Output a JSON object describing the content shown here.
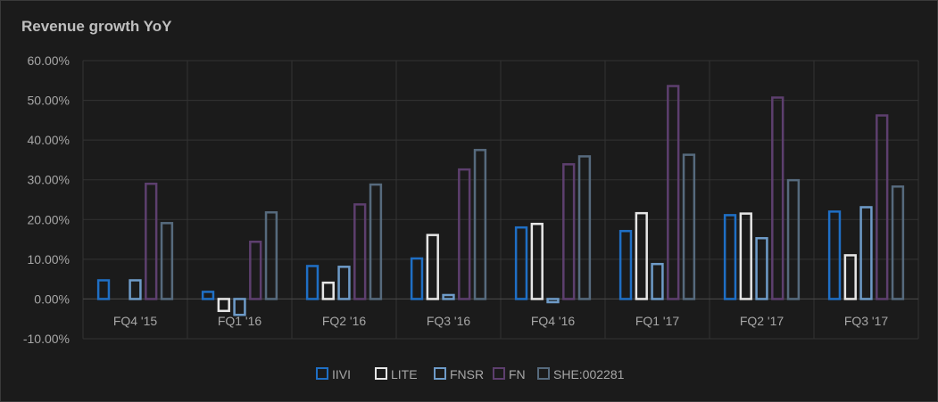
{
  "chart_data": {
    "type": "bar",
    "title": "Revenue growth YoY",
    "categories": [
      "FQ4 '15",
      "FQ1 '16",
      "FQ2 '16",
      "FQ3 '16",
      "FQ4 '16",
      "FQ1 '17",
      "FQ2 '17",
      "FQ3 '17"
    ],
    "series": [
      {
        "name": "IIVI",
        "color": "#1f6fc5",
        "values": [
          4.7,
          1.8,
          8.3,
          10.2,
          18.0,
          17.1,
          21.1,
          22.0
        ]
      },
      {
        "name": "LITE",
        "color": "#e6e6e6",
        "values": [
          null,
          -3.0,
          4.1,
          16.1,
          18.9,
          21.6,
          21.5,
          11.0
        ]
      },
      {
        "name": "FNSR",
        "color": "#6e9bc8",
        "values": [
          4.7,
          -4.0,
          8.1,
          1.0,
          -0.8,
          8.8,
          15.3,
          23.1
        ]
      },
      {
        "name": "FN",
        "color": "#5d3f6e",
        "values": [
          29.0,
          14.4,
          23.8,
          32.6,
          33.9,
          53.6,
          50.7,
          46.2
        ]
      },
      {
        "name": "SHE:002281",
        "color": "#566a7d",
        "values": [
          19.1,
          21.8,
          28.8,
          37.5,
          35.9,
          36.3,
          29.9,
          28.3
        ]
      }
    ],
    "ylim": [
      -10,
      60
    ],
    "yticks": [
      "60.00%",
      "50.00%",
      "40.00%",
      "30.00%",
      "20.00%",
      "10.00%",
      "0.00%",
      "-10.00%"
    ],
    "ytick_values": [
      60,
      50,
      40,
      30,
      20,
      10,
      0,
      -10
    ],
    "grid": true,
    "legend_position": "bottom"
  }
}
